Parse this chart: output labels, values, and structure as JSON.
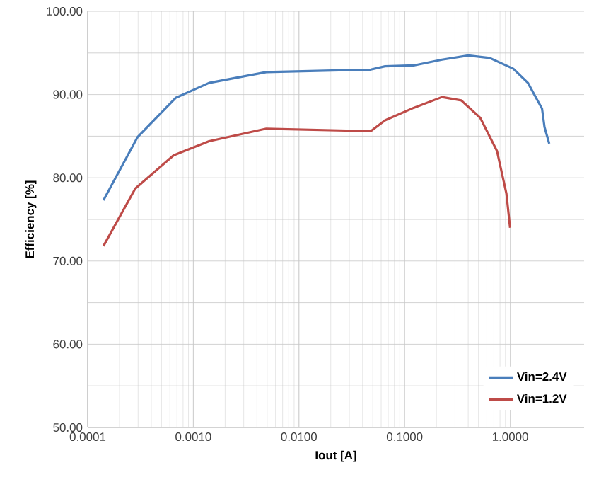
{
  "chart_data": {
    "type": "line",
    "xlabel": "Iout [A]",
    "ylabel": "Efficiency [%]",
    "log": "x",
    "grid": true,
    "legend": "bottom right",
    "line_style": "solid",
    "marker": "none",
    "xlim": [
      0.0001,
      5
    ],
    "ylim": [
      50,
      100
    ],
    "xticks": [
      {
        "value": 0.0001,
        "label": "0.0001"
      },
      {
        "value": 0.001,
        "label": "0.0010"
      },
      {
        "value": 0.01,
        "label": "0.0100"
      },
      {
        "value": 0.1,
        "label": "0.1000"
      },
      {
        "value": 1,
        "label": "1.0000"
      }
    ],
    "yticks": [
      {
        "value": 50,
        "label": "50.00"
      },
      {
        "value": 55,
        "label": null
      },
      {
        "value": 60,
        "label": "60.00"
      },
      {
        "value": 65,
        "label": null
      },
      {
        "value": 70,
        "label": "70.00"
      },
      {
        "value": 75,
        "label": null
      },
      {
        "value": 80,
        "label": "80.00"
      },
      {
        "value": 85,
        "label": null
      },
      {
        "value": 90,
        "label": "90.00"
      },
      {
        "value": 95,
        "label": null
      },
      {
        "value": 100,
        "label": "100.00"
      }
    ],
    "series": [
      {
        "name": "Vin=2.4V",
        "color": "#4a7ebb",
        "x": [
          0.000141,
          0.000297,
          0.00068,
          0.00141,
          0.0049,
          0.0479,
          0.0653,
          0.1216,
          0.226,
          0.4,
          0.64,
          1.07,
          1.47,
          2.0,
          2.11,
          2.34
        ],
        "values": [
          77.3,
          84.9,
          89.6,
          91.4,
          92.7,
          93.0,
          93.4,
          93.5,
          94.2,
          94.7,
          94.4,
          93.1,
          91.4,
          88.3,
          86.1,
          84.1
        ]
      },
      {
        "name": "Vin=1.2V",
        "color": "#be4b48",
        "x": [
          0.000141,
          0.000282,
          0.00065,
          0.00141,
          0.0049,
          0.0479,
          0.0653,
          0.1216,
          0.226,
          0.344,
          0.52,
          0.75,
          0.92,
          0.996
        ],
        "values": [
          71.8,
          78.7,
          82.7,
          84.4,
          85.9,
          85.6,
          86.9,
          88.4,
          89.7,
          89.3,
          87.2,
          83.2,
          78.1,
          74.0
        ]
      }
    ]
  }
}
